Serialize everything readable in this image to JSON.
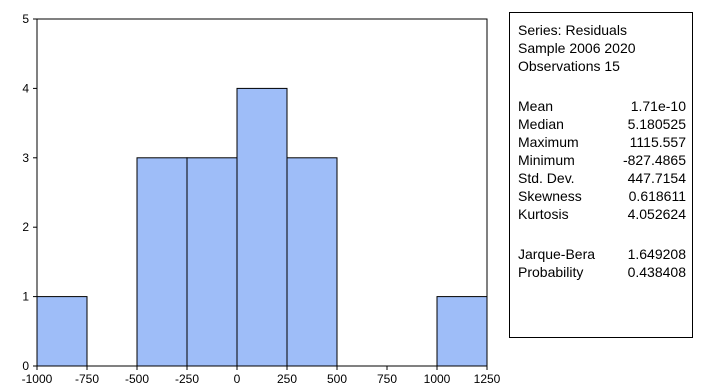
{
  "chart_data": {
    "type": "bar",
    "title": "",
    "xlabel": "",
    "ylabel": "",
    "bins": [
      {
        "from": -1000,
        "to": -750,
        "count": 1
      },
      {
        "from": -750,
        "to": -500,
        "count": 0
      },
      {
        "from": -500,
        "to": -250,
        "count": 3
      },
      {
        "from": -250,
        "to": 0,
        "count": 3
      },
      {
        "from": 0,
        "to": 250,
        "count": 4
      },
      {
        "from": 250,
        "to": 500,
        "count": 3
      },
      {
        "from": 500,
        "to": 750,
        "count": 0
      },
      {
        "from": 750,
        "to": 1000,
        "count": 0
      },
      {
        "from": 1000,
        "to": 1250,
        "count": 1
      }
    ],
    "xlim": [
      -1000,
      1250
    ],
    "ylim": [
      0,
      5
    ],
    "x_ticks": [
      "-1000",
      "-750",
      "-500",
      "-250",
      "0",
      "250",
      "500",
      "750",
      "1000",
      "1250"
    ],
    "y_ticks": [
      "0",
      "1",
      "2",
      "3",
      "4",
      "5"
    ],
    "bar_color": "#9ebdf8",
    "grid": false
  },
  "stats_panel": {
    "series": "Series: Residuals",
    "sample": "Sample 2006 2020",
    "observations": "Observations 15",
    "stats": [
      {
        "label": "Mean",
        "value": "1.71e-10"
      },
      {
        "label": "Median",
        "value": "5.180525"
      },
      {
        "label": "Maximum",
        "value": "1115.557"
      },
      {
        "label": "Minimum",
        "value": "-827.4865"
      },
      {
        "label": "Std. Dev.",
        "value": "447.7154"
      },
      {
        "label": "Skewness",
        "value": "0.618611"
      },
      {
        "label": "Kurtosis",
        "value": "4.052624"
      }
    ],
    "tests": [
      {
        "label": "Jarque-Bera",
        "value": "1.649208"
      },
      {
        "label": "Probability",
        "value": "0.438408"
      }
    ]
  }
}
